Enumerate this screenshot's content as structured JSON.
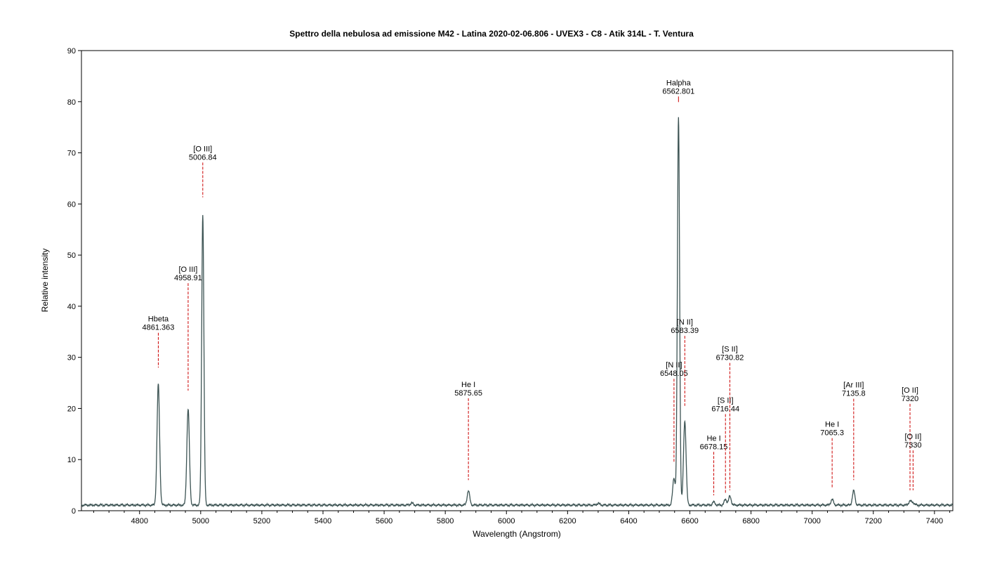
{
  "chart_data": {
    "type": "line",
    "title": "Spettro della nebulosa ad emissione M42 - Latina 2020-02-06.806 - UVEX3 - C8 - Atik 314L - T. Ventura",
    "xlabel": "Wavelength (Angstrom)",
    "ylabel": "Relative intensity",
    "xlim": [
      4610,
      7460
    ],
    "ylim": [
      0,
      90
    ],
    "xticks": [
      4800,
      5000,
      5200,
      5400,
      5600,
      5800,
      6000,
      6200,
      6400,
      6600,
      6800,
      7000,
      7200,
      7400
    ],
    "yticks": [
      0,
      10,
      20,
      30,
      40,
      50,
      60,
      70,
      80,
      90
    ],
    "grid": false,
    "colors": {
      "line": "#3d5454",
      "annotation": "#cc0000"
    },
    "baseline": 1.1,
    "peaks": [
      {
        "x": 4861.363,
        "y": 24.7
      },
      {
        "x": 4958.91,
        "y": 19.9
      },
      {
        "x": 5006.84,
        "y": 57.9
      },
      {
        "x": 5875.65,
        "y": 3.9
      },
      {
        "x": 6548.05,
        "y": 6.4
      },
      {
        "x": 6562.801,
        "y": 76.9
      },
      {
        "x": 6583.39,
        "y": 17.6
      },
      {
        "x": 6678.15,
        "y": 1.7
      },
      {
        "x": 6716.44,
        "y": 2.2
      },
      {
        "x": 6730.82,
        "y": 2.8
      },
      {
        "x": 7065.3,
        "y": 2.2
      },
      {
        "x": 7135.8,
        "y": 3.9
      },
      {
        "x": 7320,
        "y": 1.9
      },
      {
        "x": 7330,
        "y": 1.6
      },
      {
        "x": 5690,
        "y": 1.5
      },
      {
        "x": 6300,
        "y": 1.45
      }
    ],
    "annotations": [
      {
        "ion": "Hbeta",
        "wavelength": "4861.363",
        "x": 4861.363,
        "y_top": 34.8,
        "y_bottom": 28.0
      },
      {
        "ion": "[O III]",
        "wavelength": "4958.91",
        "x": 4958.91,
        "y_top": 44.5,
        "y_bottom": 23.5
      },
      {
        "ion": "[O III]",
        "wavelength": "5006.84",
        "x": 5006.84,
        "y_top": 68.1,
        "y_bottom": 61.3
      },
      {
        "ion": "He I",
        "wavelength": "5875.65",
        "x": 5875.65,
        "y_top": 22.0,
        "y_bottom": 6.0
      },
      {
        "ion": "[N II]",
        "wavelength": "6548.05",
        "x": 6548.05,
        "y_top": 25.8,
        "y_bottom": 9.5
      },
      {
        "ion": "Halpha",
        "wavelength": "6562.801",
        "x": 6562.801,
        "y_top": 80.2,
        "y_bottom": 80.0
      },
      {
        "ion": "[N II]",
        "wavelength": "6583.39",
        "x": 6583.39,
        "y_top": 34.2,
        "y_bottom": 20.5
      },
      {
        "ion": "He I",
        "wavelength": "6678.15",
        "x": 6678.15,
        "y_top": 11.5,
        "y_bottom": 3.0
      },
      {
        "ion": "[S II]",
        "wavelength": "6716.44",
        "x": 6716.44,
        "y_top": 18.9,
        "y_bottom": 3.3
      },
      {
        "ion": "[S II]",
        "wavelength": "6730.82",
        "x": 6730.82,
        "y_top": 28.9,
        "y_bottom": 4.0
      },
      {
        "ion": "He I",
        "wavelength": "7065.3",
        "x": 7065.3,
        "y_top": 14.2,
        "y_bottom": 4.5
      },
      {
        "ion": "[Ar III]",
        "wavelength": "7135.8",
        "x": 7135.8,
        "y_top": 21.9,
        "y_bottom": 6.0
      },
      {
        "ion": "[O II]",
        "wavelength": "7320",
        "x": 7320,
        "y_top": 20.9,
        "y_bottom": 4.0
      },
      {
        "ion": "[O II]",
        "wavelength": "7330",
        "x": 7330,
        "y_top": 11.8,
        "y_bottom": 4.0
      }
    ]
  }
}
